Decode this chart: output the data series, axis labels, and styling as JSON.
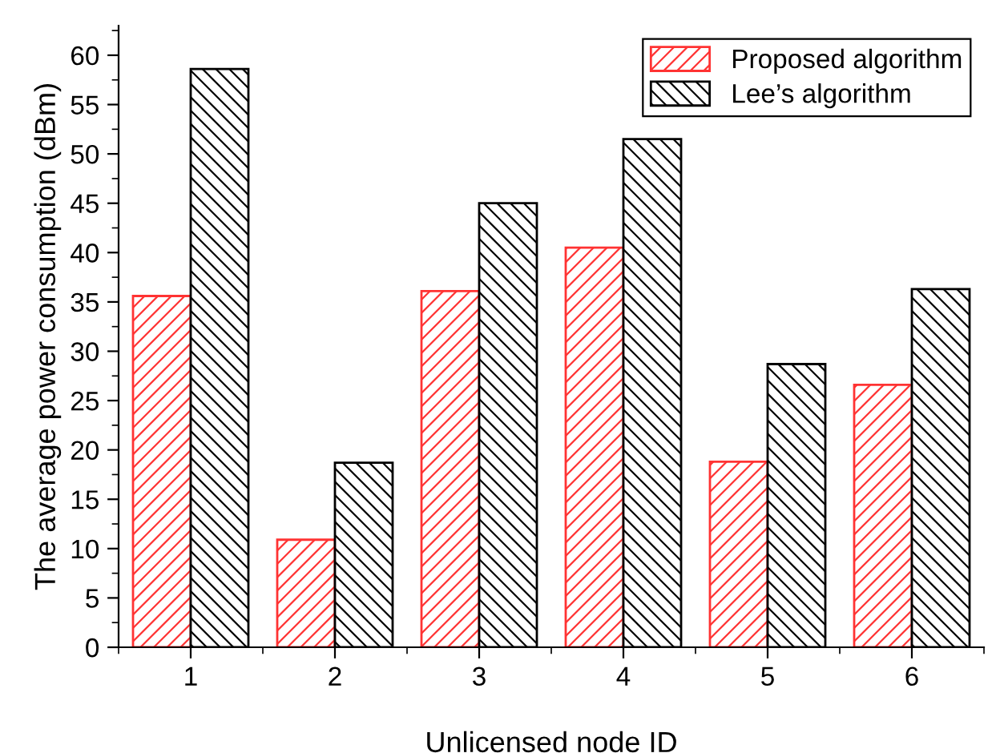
{
  "chart_data": {
    "type": "bar",
    "xlabel": "Unlicensed node ID",
    "ylabel": "The average power consumption (dBm)",
    "categories": [
      "1",
      "2",
      "3",
      "4",
      "5",
      "6"
    ],
    "series": [
      {
        "name": "Proposed algorithm",
        "color": "#ff3333",
        "values": [
          35.6,
          10.9,
          36.1,
          40.5,
          18.8,
          26.6
        ]
      },
      {
        "name": "Lee’s algorithm",
        "color": "#000000",
        "values": [
          58.6,
          18.7,
          45.0,
          51.5,
          28.7,
          36.3
        ]
      }
    ],
    "ylim": [
      0,
      63
    ],
    "yticks": [
      0,
      5,
      10,
      15,
      20,
      25,
      30,
      35,
      40,
      45,
      50,
      55,
      60
    ],
    "grid": false,
    "legend": "top right"
  }
}
